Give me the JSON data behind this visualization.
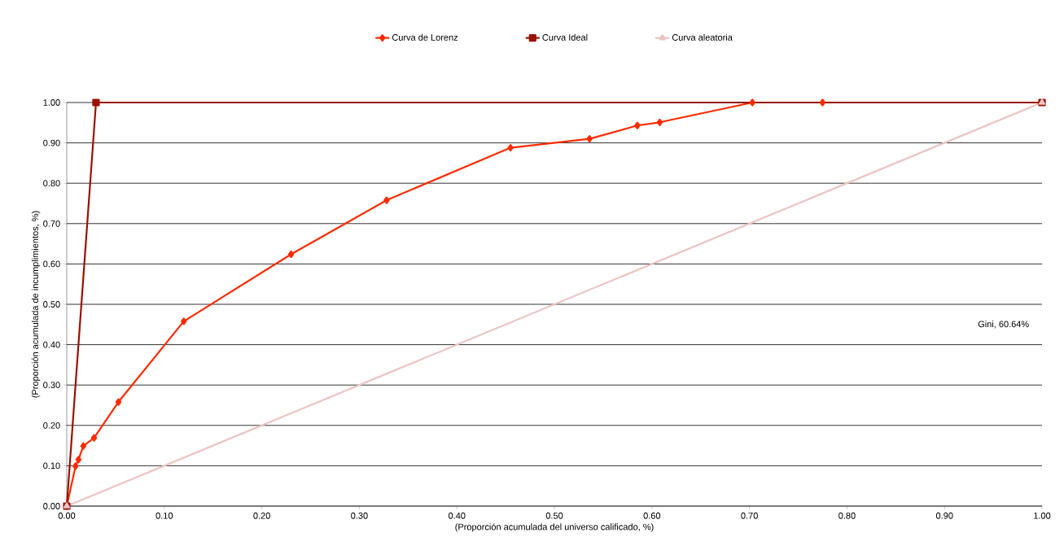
{
  "chart_data": {
    "type": "line",
    "xlabel": "(Proporción acumulada del universo calificado, %)",
    "ylabel": "(Proporción acumulada de incumplimientos, %)",
    "annotations": [
      "Gini, 60.64%"
    ],
    "xlim": [
      0,
      1
    ],
    "ylim": [
      0,
      1
    ],
    "xticks": [
      {
        "value": 0,
        "label": "0.00"
      },
      {
        "value": 0.1,
        "label": "0.10"
      },
      {
        "value": 0.2,
        "label": "0.20"
      },
      {
        "value": 0.3,
        "label": "0.30"
      },
      {
        "value": 0.4,
        "label": "0.40"
      },
      {
        "value": 0.5,
        "label": "0.50"
      },
      {
        "value": 0.6,
        "label": "0.60"
      },
      {
        "value": 0.7,
        "label": "0.70"
      },
      {
        "value": 0.8,
        "label": "0.80"
      },
      {
        "value": 0.9,
        "label": "0.90"
      },
      {
        "value": 1,
        "label": "1.00"
      }
    ],
    "yticks": [
      {
        "value": 0,
        "label": "0.00"
      },
      {
        "value": 0.1,
        "label": "0.10"
      },
      {
        "value": 0.2,
        "label": "0.20"
      },
      {
        "value": 0.3,
        "label": "0.30"
      },
      {
        "value": 0.4,
        "label": "0.40"
      },
      {
        "value": 0.5,
        "label": "0.50"
      },
      {
        "value": 0.6,
        "label": "0.60"
      },
      {
        "value": 0.7,
        "label": "0.70"
      },
      {
        "value": 0.8,
        "label": "0.80"
      },
      {
        "value": 0.9,
        "label": "0.90"
      },
      {
        "value": 1,
        "label": "1.00"
      }
    ],
    "grid": "y",
    "legend": "top",
    "series": [
      {
        "name": "Curva de Lorenz",
        "color": "#ff2a00",
        "marker": "diamond",
        "x": [
          0,
          0.009,
          0.012,
          0.017,
          0.028,
          0.053,
          0.12,
          0.23,
          0.328,
          0.455,
          0.536,
          0.585,
          0.608,
          0.703,
          0.775
        ],
        "values": [
          0,
          0.099,
          0.115,
          0.149,
          0.169,
          0.258,
          0.458,
          0.624,
          0.758,
          0.888,
          0.91,
          0.943,
          0.951,
          1.0,
          1.0
        ]
      },
      {
        "name": "Curva Ideal",
        "color": "#991100",
        "marker": "square",
        "x": [
          0,
          0.03,
          1.0
        ],
        "values": [
          0,
          1.0,
          1.0
        ]
      },
      {
        "name": "Curva aleatoria",
        "color": "#ebc4c4",
        "marker": "triangle",
        "x": [
          0,
          1.0
        ],
        "values": [
          0,
          1.0
        ]
      }
    ]
  }
}
